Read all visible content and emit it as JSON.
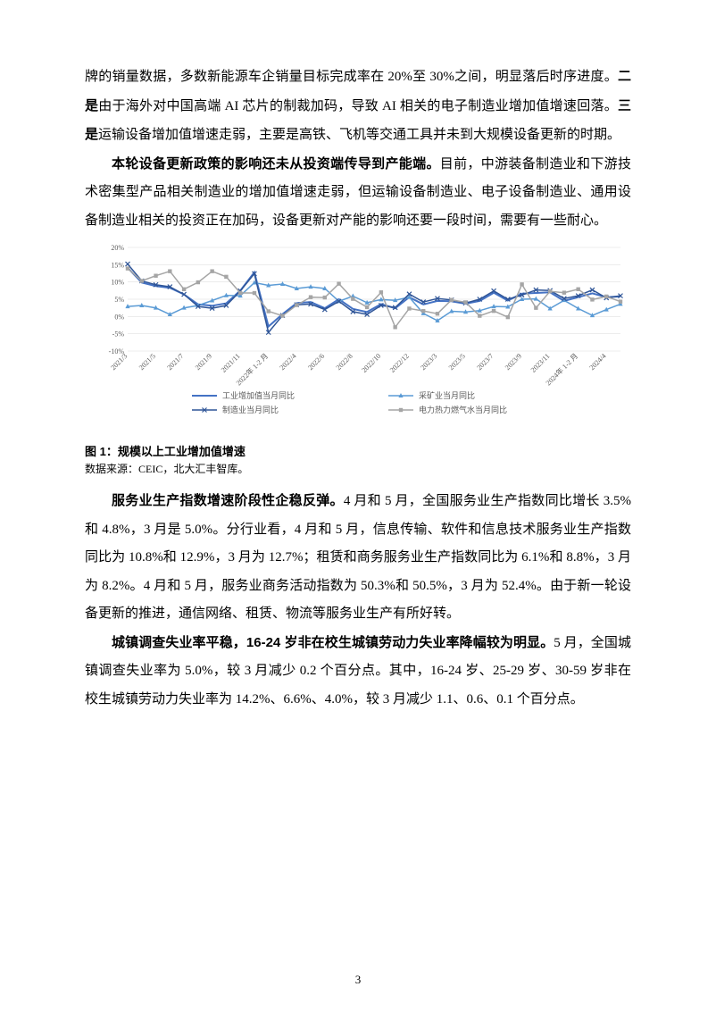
{
  "page_number": "3",
  "paragraphs": {
    "p1_a": "牌的销量数据，多数新能源车企销量目标完成率在 20%至 30%之间，明显落后时序进度。",
    "p1_b_bold": "二是",
    "p1_c": "由于海外对中国高端 AI 芯片的制裁加码，导致 AI 相关的电子制造业增加值增速回落。",
    "p1_d_bold": "三是",
    "p1_e": "运输设备增加值增速走弱，主要是高铁、飞机等交通工具并未到大规模设备更新的时期。",
    "p2_a_bold": "本轮设备更新政策的影响还未从投资端传导到产能端。",
    "p2_b": "目前，中游装备制造业和下游技术密集型产品相关制造业的增加值增速走弱，但运输设备制造业、电子设备制造业、通用设备制造业相关的投资正在加码，设备更新对产能的影响还要一段时间，需要有一些耐心。",
    "p3_a_bold": "服务业生产指数增速阶段性企稳反弹。",
    "p3_b": "4 月和 5 月，全国服务业生产指数同比增长 3.5%和 4.8%，3 月是 5.0%。分行业看，4 月和 5 月，信息传输、软件和信息技术服务业生产指数同比为 10.8%和 12.9%，3 月为 12.7%；租赁和商务服务业生产指数同比为 6.1%和 8.8%，3 月为 8.2%。4 月和 5 月，服务业商务活动指数为 50.3%和 50.5%，3 月为 52.4%。由于新一轮设备更新的推进，通信网络、租赁、物流等服务业生产有所好转。",
    "p4_a_bold": "城镇调查失业率平稳，16-24 岁非在校生城镇劳动力失业率降幅较为明显。",
    "p4_b": "5 月，全国城镇调查失业率为 5.0%，较 3 月减少 0.2 个百分点。其中，16-24 岁、25-29 岁、30-59 岁非在校生城镇劳动力失业率为 14.2%、6.6%、4.0%，较 3 月减少 1.1、0.6、0.1 个百分点。"
  },
  "chart": {
    "type": "line",
    "title": "图 1：规模以上工业增加值增速",
    "source": "数据来源：CEIC，北大汇丰智库。",
    "ylim": [
      -10,
      20
    ],
    "yticks": [
      -10,
      -5,
      0,
      5,
      10,
      15,
      20
    ],
    "ytick_labels": [
      "-10%",
      "-5%",
      "0%",
      "5%",
      "10%",
      "15%",
      "20%"
    ],
    "xtick_labels": [
      "2021/3",
      "2021/5",
      "2021/7",
      "2021/9",
      "2021/11",
      "2022年 1-2 月",
      "2022/4",
      "2022/6",
      "2022/8",
      "2022/10",
      "2022/12",
      "2023/3",
      "2023/5",
      "2023/7",
      "2023/9",
      "2023/11",
      "2024年 1-2 月",
      "2024/4"
    ],
    "x_count": 36,
    "background_color": "#ffffff",
    "grid_color": "#d9d9d9",
    "axis_color": "#808080",
    "label_fontsize": 8,
    "series": [
      {
        "name": "工业增加值当月同比",
        "legend_label": "工业增加值当月同比",
        "color": "#4472c4",
        "marker": "none",
        "line_width": 2,
        "values": [
          14.1,
          9.8,
          8.8,
          8.3,
          6.4,
          3.5,
          3.1,
          3.8,
          7.5,
          12.8,
          -2.9,
          0.7,
          3.9,
          4.2,
          2.4,
          5.0,
          2.2,
          1.3,
          3.6,
          2.4,
          5.6,
          3.5,
          4.5,
          4.4,
          3.7,
          4.5,
          6.9,
          4.6,
          6.6,
          6.8,
          7.0,
          4.5,
          5.6,
          6.7,
          5.6,
          5.8
        ]
      },
      {
        "name": "采矿业当月同比",
        "legend_label": "采矿业当月同比",
        "color": "#5b9bd5",
        "marker": "triangle",
        "line_width": 1.5,
        "values": [
          2.9,
          3.2,
          2.5,
          0.6,
          2.5,
          3.2,
          4.6,
          6.1,
          6.0,
          9.8,
          9.0,
          9.4,
          8.1,
          8.6,
          8.1,
          4.4,
          5.9,
          4.0,
          4.9,
          4.7,
          5.6,
          0.9,
          -1.2,
          1.5,
          1.3,
          1.7,
          2.9,
          2.8,
          5.0,
          5.1,
          2.3,
          4.7,
          2.3,
          0.3,
          2.0,
          3.6
        ]
      },
      {
        "name": "制造业当月同比",
        "legend_label": "制造业当月同比",
        "color": "#2f5597",
        "marker": "x",
        "line_width": 1.5,
        "values": [
          15.2,
          10.3,
          9.2,
          8.6,
          6.4,
          2.9,
          2.4,
          3.2,
          7.4,
          12.4,
          -4.6,
          0.3,
          3.4,
          3.6,
          2.0,
          4.4,
          1.4,
          0.6,
          3.2,
          2.6,
          6.5,
          4.2,
          5.2,
          4.8,
          3.9,
          5.0,
          7.4,
          5.0,
          6.2,
          7.7,
          7.5,
          5.2,
          6.0,
          7.7,
          5.4,
          6.0
        ]
      },
      {
        "name": "电力热力燃气水当月同比",
        "legend_label": "电力热力燃气水当月同比",
        "color": "#a5a5a5",
        "marker": "square",
        "line_width": 1.5,
        "values": [
          13.9,
          10.3,
          11.8,
          13.1,
          7.9,
          9.9,
          13.1,
          11.5,
          6.8,
          6.8,
          1.5,
          0.2,
          3.3,
          5.6,
          5.5,
          9.5,
          5.1,
          2.7,
          7.0,
          -3.1,
          2.3,
          1.6,
          0.8,
          4.8,
          4.1,
          0.2,
          1.6,
          -0.2,
          9.3,
          2.5,
          7.3,
          6.9,
          7.9,
          4.9,
          5.8,
          4.3
        ]
      }
    ]
  }
}
